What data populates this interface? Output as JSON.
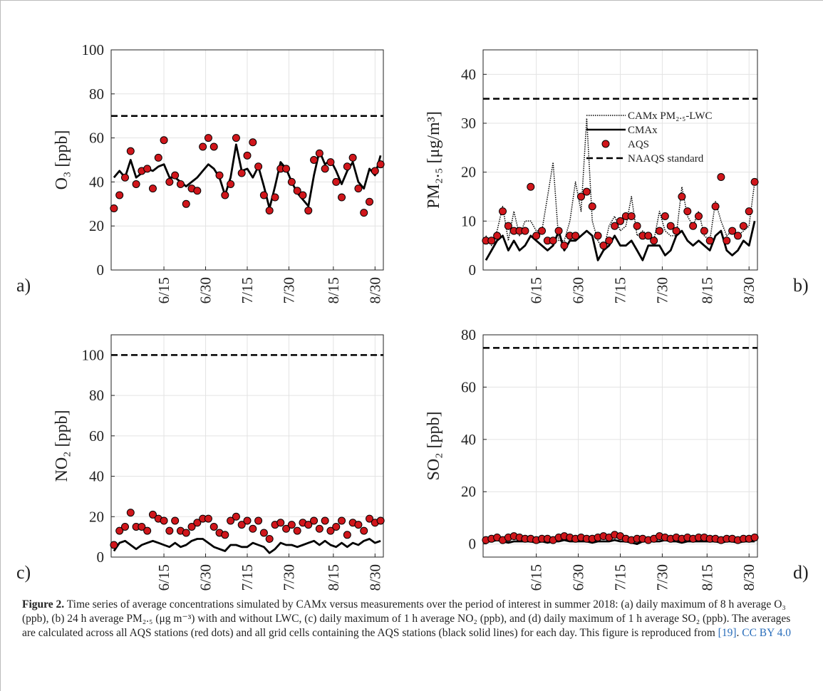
{
  "chart_data": [
    {
      "type": "line",
      "panel_label": "a)",
      "y_label": "O₃ [ppb]",
      "x": [
        "5/28",
        "5/30",
        "6/1",
        "6/3",
        "6/5",
        "6/7",
        "6/9",
        "6/11",
        "6/13",
        "6/15",
        "6/17",
        "6/19",
        "6/21",
        "6/23",
        "6/25",
        "6/27",
        "6/29",
        "7/1",
        "7/3",
        "7/5",
        "7/7",
        "7/9",
        "7/11",
        "7/13",
        "7/15",
        "7/17",
        "7/19",
        "7/21",
        "7/23",
        "7/25",
        "7/27",
        "7/29",
        "7/31",
        "8/2",
        "8/4",
        "8/6",
        "8/8",
        "8/10",
        "8/12",
        "8/14",
        "8/16",
        "8/18",
        "8/20",
        "8/22",
        "8/24",
        "8/26",
        "8/28",
        "8/30",
        "9/1"
      ],
      "xlim": [
        "5/27",
        "9/2"
      ],
      "xticks": [
        "6/15",
        "6/30",
        "7/15",
        "7/30",
        "8/15",
        "8/30"
      ],
      "ylim": [
        0,
        100
      ],
      "yticks": [
        0,
        20,
        40,
        60,
        80,
        100
      ],
      "grid": true,
      "series": [
        {
          "style": "solid",
          "color": "#000000",
          "values": [
            42,
            45,
            42,
            50,
            42,
            44,
            46,
            45,
            47,
            48,
            42,
            42,
            40,
            38,
            40,
            42,
            45,
            48,
            46,
            42,
            34,
            42,
            57,
            45,
            46,
            42,
            47,
            38,
            28,
            38,
            49,
            46,
            40,
            35,
            32,
            29,
            43,
            54,
            48,
            50,
            45,
            39,
            45,
            49,
            40,
            37,
            46,
            43,
            52
          ]
        },
        {
          "style": "markers",
          "color": "#d0161b",
          "values": [
            28,
            34,
            42,
            54,
            39,
            45,
            46,
            37,
            51,
            59,
            40,
            43,
            39,
            30,
            37,
            36,
            56,
            60,
            56,
            43,
            34,
            39,
            60,
            44,
            52,
            58,
            47,
            34,
            27,
            33,
            46,
            46,
            40,
            36,
            34,
            27,
            50,
            53,
            46,
            49,
            40,
            33,
            47,
            51,
            37,
            26,
            31,
            45,
            48
          ]
        }
      ],
      "standard": {
        "style": "dashed",
        "color": "#000000",
        "value": 70
      }
    },
    {
      "type": "line",
      "panel_label": "b)",
      "y_label": "PM₂.₅ [μg/m³]",
      "x": [
        "5/28",
        "5/30",
        "6/1",
        "6/3",
        "6/5",
        "6/7",
        "6/9",
        "6/11",
        "6/13",
        "6/15",
        "6/17",
        "6/19",
        "6/21",
        "6/23",
        "6/25",
        "6/27",
        "6/29",
        "7/1",
        "7/3",
        "7/5",
        "7/7",
        "7/9",
        "7/11",
        "7/13",
        "7/15",
        "7/17",
        "7/19",
        "7/21",
        "7/23",
        "7/25",
        "7/27",
        "7/29",
        "7/31",
        "8/2",
        "8/4",
        "8/6",
        "8/8",
        "8/10",
        "8/12",
        "8/14",
        "8/16",
        "8/18",
        "8/20",
        "8/22",
        "8/24",
        "8/26",
        "8/28",
        "8/30",
        "9/1"
      ],
      "xlim": [
        "5/27",
        "9/2"
      ],
      "xticks": [
        "6/15",
        "6/30",
        "7/15",
        "7/30",
        "8/15",
        "8/30"
      ],
      "ylim": [
        0,
        45
      ],
      "yticks": [
        0,
        10,
        20,
        30,
        40
      ],
      "grid": true,
      "legend": "right",
      "series": [
        {
          "name": "CAMx PM₂.₅-LWC",
          "style": "dotted",
          "color": "#000000",
          "values": [
            7,
            5,
            8,
            13,
            6,
            12,
            7,
            10,
            10,
            8,
            8,
            15,
            22,
            6,
            6,
            10,
            18,
            12,
            31,
            10,
            6,
            4,
            9,
            11,
            8,
            9,
            15,
            7,
            8,
            7,
            6,
            12,
            8,
            7,
            7,
            17,
            11,
            9,
            12,
            7,
            6,
            14,
            10,
            7,
            8,
            7,
            8,
            9,
            18
          ]
        },
        {
          "name": "CMAx",
          "style": "solid",
          "color": "#000000",
          "values": [
            2,
            4,
            6,
            7,
            4,
            6,
            4,
            5,
            7,
            6,
            5,
            4,
            5,
            8,
            4,
            6,
            6,
            7,
            8,
            7,
            2,
            4,
            5,
            7,
            5,
            5,
            6,
            4,
            2,
            5,
            5,
            5,
            3,
            4,
            7,
            8,
            6,
            5,
            6,
            5,
            4,
            7,
            8,
            4,
            3,
            4,
            6,
            5,
            10
          ]
        },
        {
          "name": "AQS",
          "style": "markers",
          "color": "#d0161b",
          "values": [
            6,
            6,
            7,
            12,
            9,
            8,
            8,
            8,
            17,
            7,
            8,
            6,
            6,
            8,
            5,
            7,
            7,
            15,
            16,
            13,
            7,
            5,
            6,
            9,
            10,
            11,
            11,
            9,
            7,
            7,
            6,
            8,
            11,
            9,
            8,
            15,
            12,
            9,
            11,
            8,
            6,
            13,
            19,
            6,
            8,
            7,
            9,
            12,
            18
          ]
        }
      ],
      "standard": {
        "name": "NAAQS standard",
        "style": "dashed",
        "color": "#000000",
        "value": 35
      }
    },
    {
      "type": "line",
      "panel_label": "c)",
      "y_label": "NO₂ [ppb]",
      "x": [
        "5/28",
        "5/30",
        "6/1",
        "6/3",
        "6/5",
        "6/7",
        "6/9",
        "6/11",
        "6/13",
        "6/15",
        "6/17",
        "6/19",
        "6/21",
        "6/23",
        "6/25",
        "6/27",
        "6/29",
        "7/1",
        "7/3",
        "7/5",
        "7/7",
        "7/9",
        "7/11",
        "7/13",
        "7/15",
        "7/17",
        "7/19",
        "7/21",
        "7/23",
        "7/25",
        "7/27",
        "7/29",
        "7/31",
        "8/2",
        "8/4",
        "8/6",
        "8/8",
        "8/10",
        "8/12",
        "8/14",
        "8/16",
        "8/18",
        "8/20",
        "8/22",
        "8/24",
        "8/26",
        "8/28",
        "8/30",
        "9/1"
      ],
      "xlim": [
        "5/27",
        "9/2"
      ],
      "xticks": [
        "6/15",
        "6/30",
        "7/15",
        "7/30",
        "8/15",
        "8/30"
      ],
      "ylim": [
        0,
        110
      ],
      "yticks": [
        0,
        20,
        40,
        60,
        80,
        100
      ],
      "grid": true,
      "series": [
        {
          "style": "solid",
          "color": "#000000",
          "values": [
            3,
            7,
            8,
            6,
            4,
            6,
            7,
            8,
            7,
            6,
            5,
            7,
            5,
            6,
            8,
            9,
            9,
            7,
            5,
            4,
            3,
            6,
            6,
            5,
            5,
            7,
            6,
            5,
            2,
            4,
            7,
            6,
            6,
            5,
            6,
            7,
            8,
            6,
            8,
            6,
            5,
            7,
            5,
            7,
            6,
            8,
            9,
            7,
            8
          ]
        },
        {
          "style": "markers",
          "color": "#d0161b",
          "values": [
            6,
            13,
            15,
            22,
            15,
            15,
            13,
            21,
            19,
            18,
            13,
            18,
            13,
            12,
            15,
            17,
            19,
            19,
            15,
            12,
            11,
            18,
            20,
            16,
            18,
            14,
            18,
            12,
            9,
            16,
            17,
            14,
            16,
            13,
            17,
            16,
            18,
            14,
            18,
            13,
            15,
            18,
            11,
            17,
            16,
            13,
            19,
            17,
            18
          ]
        }
      ],
      "standard": {
        "style": "dashed",
        "color": "#000000",
        "value": 100
      }
    },
    {
      "type": "line",
      "panel_label": "d)",
      "y_label": "SO₂ [ppb]",
      "x": [
        "5/28",
        "5/30",
        "6/1",
        "6/3",
        "6/5",
        "6/7",
        "6/9",
        "6/11",
        "6/13",
        "6/15",
        "6/17",
        "6/19",
        "6/21",
        "6/23",
        "6/25",
        "6/27",
        "6/29",
        "7/1",
        "7/3",
        "7/5",
        "7/7",
        "7/9",
        "7/11",
        "7/13",
        "7/15",
        "7/17",
        "7/19",
        "7/21",
        "7/23",
        "7/25",
        "7/27",
        "7/29",
        "7/31",
        "8/2",
        "8/4",
        "8/6",
        "8/8",
        "8/10",
        "8/12",
        "8/14",
        "8/16",
        "8/18",
        "8/20",
        "8/22",
        "8/24",
        "8/26",
        "8/28",
        "8/30",
        "9/1"
      ],
      "xlim": [
        "5/27",
        "9/2"
      ],
      "xticks": [
        "6/15",
        "6/30",
        "7/15",
        "7/30",
        "8/15",
        "8/30"
      ],
      "ylim": [
        -5,
        80
      ],
      "yticks": [
        0,
        20,
        40,
        60,
        80
      ],
      "grid": true,
      "series": [
        {
          "style": "solid",
          "color": "#000000",
          "values": [
            1,
            1,
            1.5,
            1,
            0.5,
            1,
            1,
            1,
            1,
            0.5,
            1,
            0.5,
            1,
            1,
            1.5,
            1,
            1,
            1,
            1,
            0.5,
            1,
            1,
            1,
            1.5,
            1,
            1,
            0.5,
            0,
            1,
            1,
            1,
            1,
            1.5,
            1,
            1,
            0.5,
            1,
            1,
            1,
            1,
            1,
            1,
            0.5,
            1,
            1,
            0.5,
            1,
            1,
            1
          ]
        },
        {
          "style": "markers",
          "color": "#d0161b",
          "values": [
            1.5,
            2,
            2.5,
            1.5,
            2.5,
            3,
            2.5,
            2,
            2,
            1.5,
            2,
            2,
            1.5,
            2.5,
            3,
            2.5,
            2,
            2.5,
            2,
            2,
            2.5,
            3,
            2.5,
            3.5,
            3,
            2,
            1.5,
            2,
            2,
            1.5,
            2,
            3,
            2.5,
            2,
            2.5,
            2,
            2.5,
            2,
            2.5,
            2.5,
            2,
            2,
            1.5,
            2,
            2,
            1.5,
            2,
            2,
            2.5
          ]
        }
      ],
      "standard": {
        "style": "dashed",
        "color": "#000000",
        "value": 75
      }
    }
  ],
  "caption": {
    "label": "Figure 2.",
    "text": "Time series of average concentrations simulated by CAMx versus measurements over the period of interest in summer 2018: (a) daily maximum of 8 h average O₃ (ppb), (b) 24 h average PM₂.₅ (μg m⁻³) with and without LWC, (c) daily maximum of 1 h average NO₂ (ppb), and (d) daily maximum of 1 h average SO₂ (ppb). The averages are calculated across all AQS stations (red dots) and all grid cells containing the AQS stations (black solid lines) for each day. This figure is reproduced from",
    "citation": "[19]",
    "text_end": ".",
    "license": "CC BY 4.0"
  }
}
